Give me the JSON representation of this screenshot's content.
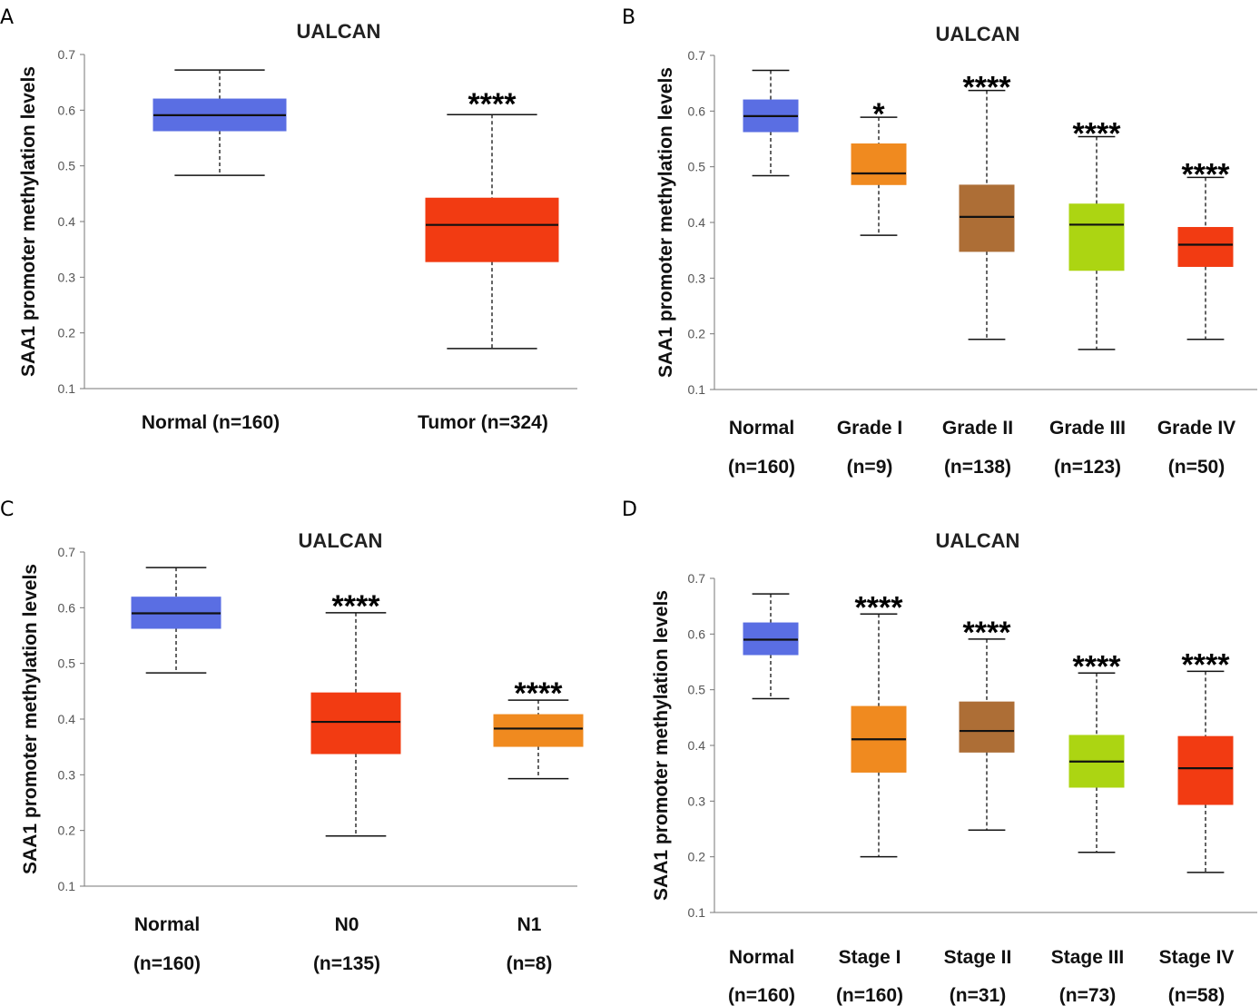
{
  "chart_data": [
    {
      "panel": "A",
      "type": "box",
      "title": "UALCAN",
      "ylabel": "SAA1 promoter methylation levels",
      "ylim": [
        0.1,
        0.7
      ],
      "yticks": [
        "0.1",
        "0.2",
        "0.3",
        "0.4",
        "0.5",
        "0.6",
        "0.7"
      ],
      "groups": [
        {
          "label": "Normal (n=160)",
          "label2": "",
          "color": "#5a6ee3",
          "min": 0.483,
          "q1": 0.563,
          "median": 0.591,
          "q3": 0.62,
          "max": 0.672,
          "sig": ""
        },
        {
          "label": "Tumor (n=324)",
          "label2": "",
          "color": "#f23b12",
          "min": 0.172,
          "q1": 0.328,
          "median": 0.394,
          "q3": 0.442,
          "max": 0.592,
          "sig": "****"
        }
      ]
    },
    {
      "panel": "B",
      "type": "box",
      "title": "UALCAN",
      "ylabel": "SAA1 promoter methylation levels",
      "ylim": [
        0.1,
        0.7
      ],
      "yticks": [
        "0.1",
        "0.2",
        "0.3",
        "0.4",
        "0.5",
        "0.6",
        "0.7"
      ],
      "groups": [
        {
          "label": "Normal",
          "label2": "(n=160)",
          "color": "#5a6ee3",
          "min": 0.484,
          "q1": 0.563,
          "median": 0.591,
          "q3": 0.62,
          "max": 0.673,
          "sig": ""
        },
        {
          "label": "Grade I",
          "label2": "(n=9)",
          "color": "#f08a1f",
          "min": 0.377,
          "q1": 0.468,
          "median": 0.488,
          "q3": 0.541,
          "max": 0.589,
          "sig": "*"
        },
        {
          "label": "Grade II",
          "label2": "(n=138)",
          "color": "#ad6e36",
          "min": 0.19,
          "q1": 0.348,
          "median": 0.41,
          "q3": 0.467,
          "max": 0.637,
          "sig": "****"
        },
        {
          "label": "Grade III",
          "label2": "(n=123)",
          "color": "#acd512",
          "min": 0.172,
          "q1": 0.314,
          "median": 0.396,
          "q3": 0.433,
          "max": 0.554,
          "sig": "****"
        },
        {
          "label": "Grade IV",
          "label2": "(n=50)",
          "color": "#f23b12",
          "min": 0.19,
          "q1": 0.321,
          "median": 0.36,
          "q3": 0.391,
          "max": 0.481,
          "sig": "****"
        }
      ]
    },
    {
      "panel": "C",
      "type": "box",
      "title": "UALCAN",
      "ylabel": "SAA1 promoter methylation levels",
      "ylim": [
        0.1,
        0.7
      ],
      "yticks": [
        "0.1",
        "0.2",
        "0.3",
        "0.4",
        "0.5",
        "0.6",
        "0.7"
      ],
      "groups": [
        {
          "label": "Normal",
          "label2": "(n=160)",
          "color": "#5a6ee3",
          "min": 0.483,
          "q1": 0.563,
          "median": 0.59,
          "q3": 0.619,
          "max": 0.672,
          "sig": ""
        },
        {
          "label": "N0",
          "label2": "(n=135)",
          "color": "#f23b12",
          "min": 0.19,
          "q1": 0.338,
          "median": 0.395,
          "q3": 0.447,
          "max": 0.591,
          "sig": "****"
        },
        {
          "label": "N1",
          "label2": "(n=8)",
          "color": "#f08a1f",
          "min": 0.293,
          "q1": 0.351,
          "median": 0.383,
          "q3": 0.408,
          "max": 0.434,
          "sig": "****"
        }
      ]
    },
    {
      "panel": "D",
      "type": "box",
      "title": "UALCAN",
      "ylabel": "SAA1 promoter methylation levels",
      "ylim": [
        0.1,
        0.7
      ],
      "yticks": [
        "0.1",
        "0.2",
        "0.3",
        "0.4",
        "0.5",
        "0.6",
        "0.7"
      ],
      "groups": [
        {
          "label": "Normal",
          "label2": "(n=160)",
          "color": "#5a6ee3",
          "min": 0.484,
          "q1": 0.563,
          "median": 0.59,
          "q3": 0.62,
          "max": 0.672,
          "sig": ""
        },
        {
          "label": "Stage I",
          "label2": "(n=160)",
          "color": "#f08a1f",
          "min": 0.2,
          "q1": 0.352,
          "median": 0.411,
          "q3": 0.47,
          "max": 0.636,
          "sig": "****"
        },
        {
          "label": "Stage II",
          "label2": "(n=31)",
          "color": "#ad6e36",
          "min": 0.248,
          "q1": 0.388,
          "median": 0.426,
          "q3": 0.478,
          "max": 0.591,
          "sig": "****"
        },
        {
          "label": "Stage III",
          "label2": "(n=73)",
          "color": "#acd512",
          "min": 0.208,
          "q1": 0.325,
          "median": 0.371,
          "q3": 0.418,
          "max": 0.53,
          "sig": "****"
        },
        {
          "label": "Stage IV",
          "label2": "(n=58)",
          "color": "#f23b12",
          "min": 0.172,
          "q1": 0.294,
          "median": 0.359,
          "q3": 0.416,
          "max": 0.533,
          "sig": "****"
        }
      ]
    }
  ]
}
